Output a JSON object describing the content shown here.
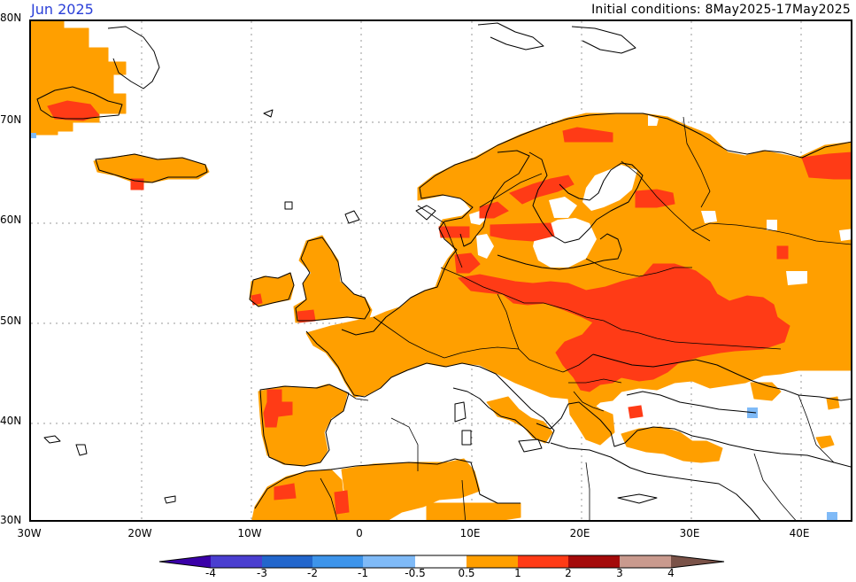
{
  "header": {
    "period": "Jun 2025",
    "initial_conditions": "Initial conditions: 8May2025-17May2025"
  },
  "axes": {
    "lat_labels": [
      "80N",
      "70N",
      "60N",
      "50N",
      "40N",
      "30N"
    ],
    "lon_labels": [
      "30W",
      "20W",
      "10W",
      "0",
      "10E",
      "20E",
      "30E",
      "40E"
    ]
  },
  "legend": {
    "labels": [
      "-4",
      "-3",
      "-2",
      "-1",
      "-0.5",
      "0.5",
      "1",
      "2",
      "3",
      "4"
    ],
    "colors": {
      "lt_neg4": "#3a00a8",
      "neg4_neg3": "#4a3ed0",
      "neg3_neg2": "#2266cc",
      "neg2_neg1": "#3d94ea",
      "neg1_neg05": "#7fbaf7",
      "neutral": "#ffffff",
      "p05_1": "#ff9f00",
      "p1_2": "#ff3b16",
      "p2_3": "#a40a0a",
      "p3_4": "#c99a8e",
      "gt4": "#7a5248"
    }
  }
}
